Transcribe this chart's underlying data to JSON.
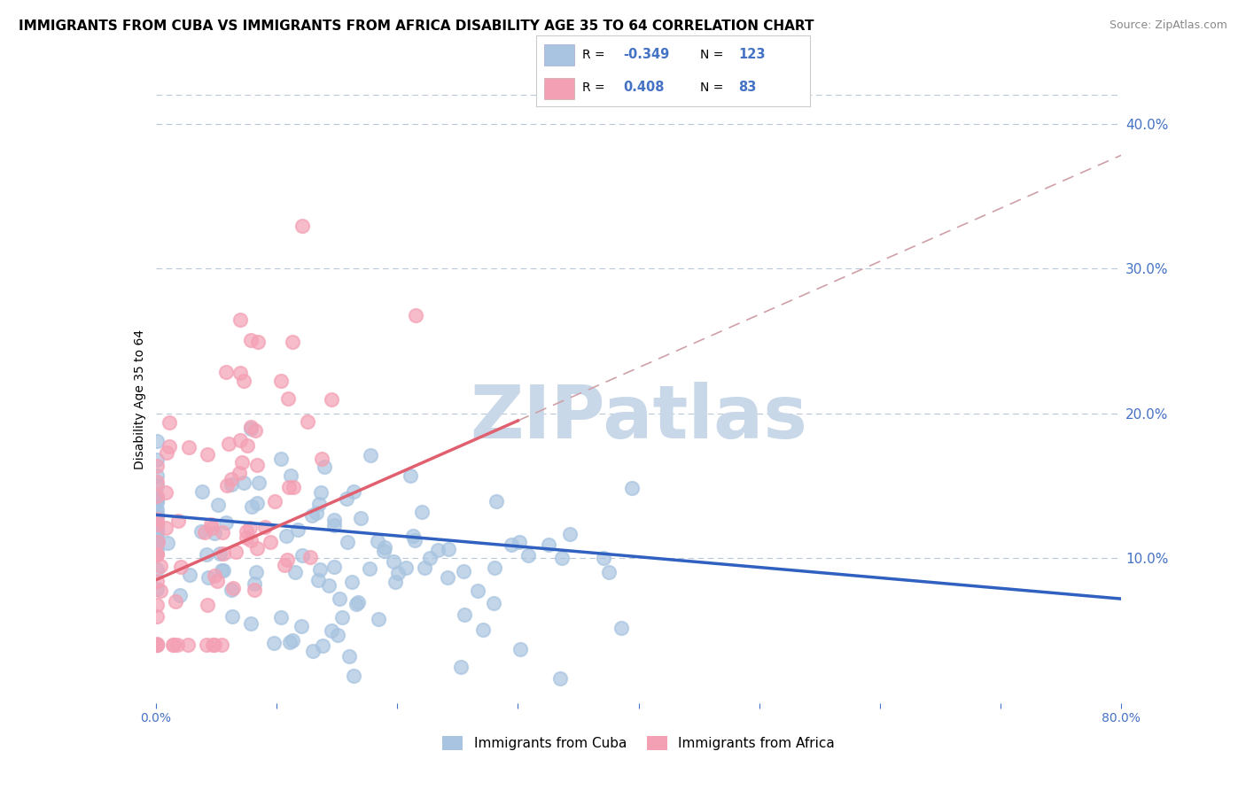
{
  "title": "IMMIGRANTS FROM CUBA VS IMMIGRANTS FROM AFRICA DISABILITY AGE 35 TO 64 CORRELATION CHART",
  "source": "Source: ZipAtlas.com",
  "ylabel": "Disability Age 35 to 64",
  "xmin": 0.0,
  "xmax": 0.8,
  "ymin": 0.0,
  "ymax": 0.42,
  "yticks": [
    0.1,
    0.2,
    0.3,
    0.4
  ],
  "ytick_labels": [
    "10.0%",
    "20.0%",
    "30.0%",
    "40.0%"
  ],
  "xticks": [
    0.0,
    0.1,
    0.2,
    0.3,
    0.4,
    0.5,
    0.6,
    0.7,
    0.8
  ],
  "xtick_labels": [
    "0.0%",
    "",
    "",
    "",
    "",
    "",
    "",
    "",
    "80.0%"
  ],
  "cuba_R": -0.349,
  "cuba_N": 123,
  "africa_R": 0.408,
  "africa_N": 83,
  "cuba_color": "#a8c4e0",
  "africa_color": "#f4a0b4",
  "cuba_line_color": "#3060c0",
  "africa_line_color": "#e06070",
  "africa_dash_color": "#d0a0a8",
  "title_fontsize": 11,
  "axis_label_fontsize": 10,
  "tick_fontsize": 10,
  "watermark_text": "ZIPatlas",
  "watermark_color": "#c8d8e8",
  "legend_label_cuba": "Immigrants from Cuba",
  "legend_label_africa": "Immigrants from Africa",
  "background_color": "#ffffff",
  "grid_color": "#b8c8d8",
  "axis_color": "#4472c4",
  "cuba_line_start_y": 0.13,
  "cuba_line_end_y": 0.072,
  "africa_line_start_y": 0.085,
  "africa_line_end_y": 0.195,
  "africa_line_end_x": 0.3
}
